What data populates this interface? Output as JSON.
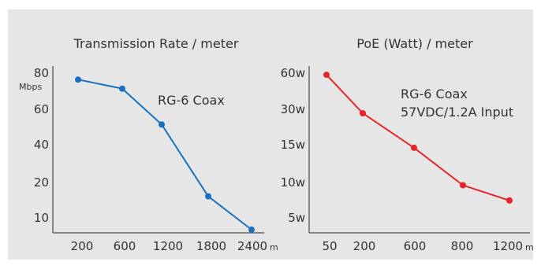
{
  "background_color": "#e6e6e6",
  "axis_color": "#666666",
  "chart_data": [
    {
      "type": "line",
      "title": "Transmission Rate / meter",
      "ylabel": "Mbps",
      "x_unit": "m",
      "categories": [
        "200",
        "600",
        "1200",
        "1800",
        "2400"
      ],
      "y_ticks": [
        "80",
        "60",
        "40",
        "20",
        "10"
      ],
      "series": [
        {
          "color": "#1a6fbf",
          "values": [
            76,
            71,
            51,
            16,
            2
          ]
        }
      ],
      "annotations": [
        "RG-6 Coax"
      ],
      "grid": false
    },
    {
      "type": "line",
      "title": "PoE (Watt) / meter",
      "x_unit": "m",
      "categories": [
        "50",
        "200",
        "600",
        "800",
        "1200"
      ],
      "y_ticks": [
        "60w",
        "30w",
        "15w",
        "10w",
        "5w"
      ],
      "series": [
        {
          "color": "#e8242a",
          "values": [
            58,
            28,
            14.5,
            9.6,
            7.4
          ]
        }
      ],
      "annotations": [
        "RG-6 Coax",
        "57VDC/1.2A Input"
      ],
      "grid": false
    }
  ]
}
